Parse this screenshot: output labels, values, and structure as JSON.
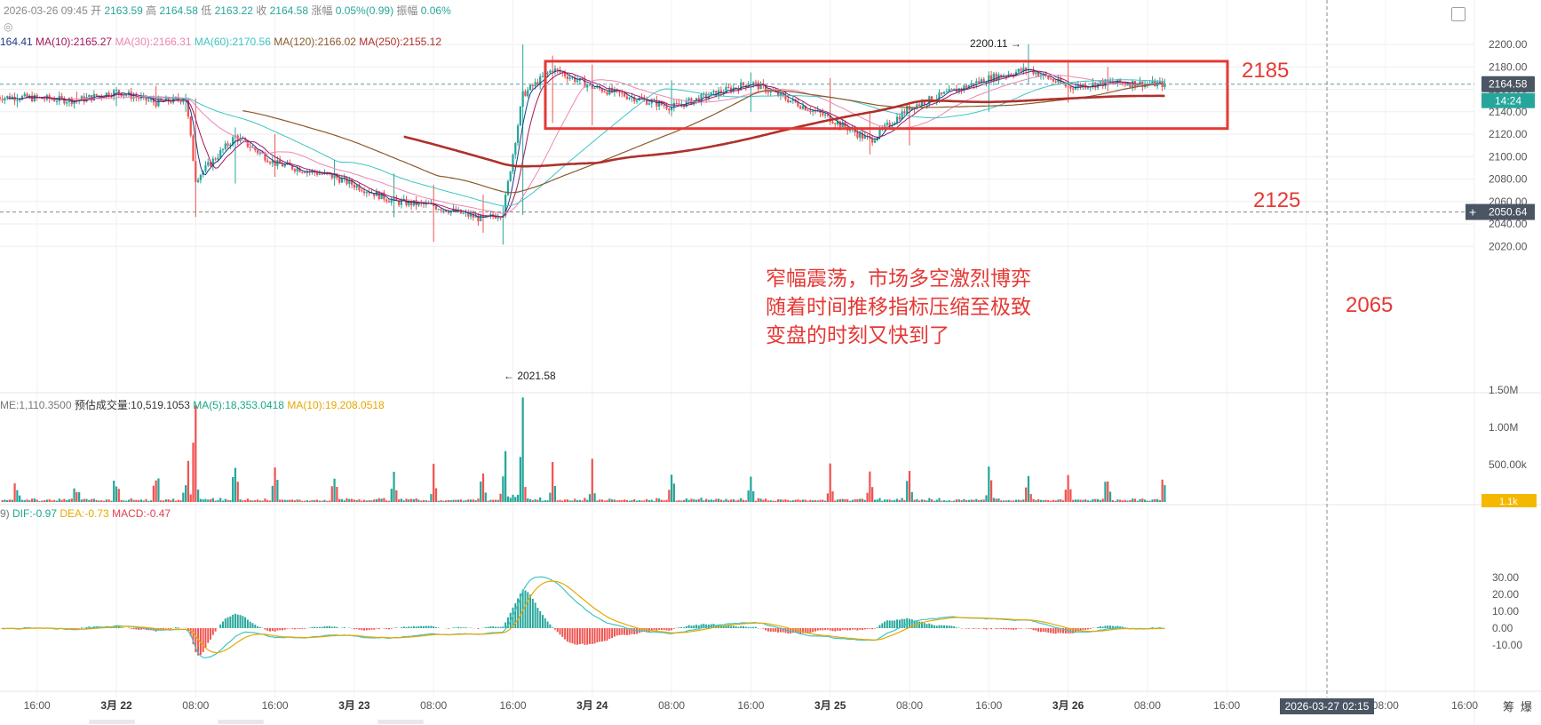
{
  "header": {
    "date": "2026-03-26 09:45",
    "open_label": "开",
    "open": "2163.59",
    "high_label": "高",
    "high": "2164.58",
    "low_label": "低",
    "low": "2163.22",
    "close_label": "收",
    "close": "2164.58",
    "chg_label": "涨幅",
    "chg": "0.05%(0.99)",
    "amp_label": "振幅",
    "amp": "0.06%"
  },
  "ma_legend": [
    {
      "text": "164.41",
      "color": "#1f3a8a"
    },
    {
      "text": "MA(10):2165.27",
      "color": "#a2165a"
    },
    {
      "text": "MA(30):2166.31",
      "color": "#ee86b4"
    },
    {
      "text": "MA(60):2170.56",
      "color": "#3fc4c4"
    },
    {
      "text": "MA(120):2166.02",
      "color": "#8a5a2a"
    },
    {
      "text": "MA(250):2155.12",
      "color": "#b0302a"
    }
  ],
  "volume_legend": [
    {
      "text": "ME:1,110.3500",
      "color": "#777777"
    },
    {
      "text": "预估成交量:10,519.1053",
      "color": "#333333"
    },
    {
      "text": "MA(5):18,353.0418",
      "color": "#1aa88a"
    },
    {
      "text": "MA(10):19,208.0518",
      "color": "#e6a800"
    }
  ],
  "macd_legend": [
    {
      "text": "9)",
      "color": "#777777"
    },
    {
      "text": "DIF:-0.97",
      "color": "#1aa88a"
    },
    {
      "text": "DEA:-0.73",
      "color": "#e6a800"
    },
    {
      "text": "MACD:-0.47",
      "color": "#e04050"
    }
  ],
  "price_axis": {
    "ticks": [
      "2200.00",
      "2180.00",
      "2160.00",
      "2140.00",
      "2120.00",
      "2100.00",
      "2080.00",
      "2060.00",
      "2040.00",
      "2020.00"
    ],
    "current_price": "2164.58",
    "countdown": "14:24",
    "crosshair_price": "2050.64"
  },
  "volume_axis": {
    "ticks": [
      "1.50M",
      "1.00M",
      "500.00k"
    ],
    "current": "1.1k"
  },
  "macd_axis": {
    "ticks": [
      "30.00",
      "20.00",
      "10.00",
      "0.00",
      "-10.00"
    ]
  },
  "time_axis": {
    "labels": [
      "16:00",
      "3月 22",
      "08:00",
      "16:00",
      "3月 23",
      "08:00",
      "16:00",
      "3月 24",
      "08:00",
      "16:00",
      "3月 25",
      "08:00",
      "16:00",
      "3月 26",
      "08:00",
      "16:00",
      "08:00",
      "16:00"
    ],
    "crosshair_time": "2026-03-27 02:15"
  },
  "annotations": {
    "high_marker": "2200.11",
    "low_marker": "2021.58",
    "level_upper": "2185",
    "level_lower": "2125",
    "level_support": "2065",
    "comment_line1": "窄幅震荡，市场多空激烈博弈",
    "comment_line2": "随着时间推移指标压缩至极致",
    "comment_line3": "变盘的时刻又快到了"
  },
  "corner_labels": {
    "right1": "筹",
    "right2": "爆"
  },
  "colors": {
    "up": "#26a69a",
    "down": "#ef5350",
    "box": "#e53935",
    "annotation": "#e53935",
    "axis_text": "#555555",
    "grid": "#eeeeee",
    "price_tag_bg": "#4b5563",
    "countdown_bg": "#26a69a",
    "vol_tag_bg": "#f5b800"
  },
  "chart_data": {
    "type": "candlestick",
    "timeframe": "15m",
    "ylim": [
      2010,
      2210
    ],
    "ohlc_summary": [
      {
        "t": "3月21 14:00",
        "o": 2148,
        "h": 2156,
        "l": 2144,
        "c": 2153
      },
      {
        "t": "3月21 20:00",
        "o": 2153,
        "h": 2158,
        "l": 2147,
        "c": 2150
      },
      {
        "t": "3月22 00:00",
        "o": 2150,
        "h": 2162,
        "l": 2145,
        "c": 2158
      },
      {
        "t": "3月22 04:00",
        "o": 2158,
        "h": 2163,
        "l": 2147,
        "c": 2148
      },
      {
        "t": "3月22 07:00",
        "o": 2148,
        "h": 2156,
        "l": 2140,
        "c": 2152
      },
      {
        "t": "3月22 08:00",
        "o": 2150,
        "h": 2152,
        "l": 2046,
        "c": 2080
      },
      {
        "t": "3月22 12:00",
        "o": 2080,
        "h": 2126,
        "l": 2076,
        "c": 2118
      },
      {
        "t": "3月22 16:00",
        "o": 2116,
        "h": 2120,
        "l": 2082,
        "c": 2094
      },
      {
        "t": "3月22 22:00",
        "o": 2094,
        "h": 2097,
        "l": 2074,
        "c": 2082
      },
      {
        "t": "3月23 04:00",
        "o": 2082,
        "h": 2085,
        "l": 2046,
        "c": 2060
      },
      {
        "t": "3月23 08:00",
        "o": 2060,
        "h": 2075,
        "l": 2024,
        "c": 2056
      },
      {
        "t": "3月23 13:00",
        "o": 2056,
        "h": 2066,
        "l": 2032,
        "c": 2044
      },
      {
        "t": "3月23 15:00",
        "o": 2044,
        "h": 2056,
        "l": 2021.58,
        "c": 2050
      },
      {
        "t": "3月23 17:00",
        "o": 2050,
        "h": 2200,
        "l": 2048,
        "c": 2155
      },
      {
        "t": "3月23 20:00",
        "o": 2155,
        "h": 2190,
        "l": 2130,
        "c": 2178
      },
      {
        "t": "3月24 00:00",
        "o": 2178,
        "h": 2182,
        "l": 2128,
        "c": 2162
      },
      {
        "t": "3月24 08:00",
        "o": 2162,
        "h": 2168,
        "l": 2136,
        "c": 2144
      },
      {
        "t": "3月24 16:00",
        "o": 2144,
        "h": 2175,
        "l": 2140,
        "c": 2166
      },
      {
        "t": "3月25 00:00",
        "o": 2166,
        "h": 2170,
        "l": 2128,
        "c": 2134
      },
      {
        "t": "3月25 04:00",
        "o": 2134,
        "h": 2140,
        "l": 2102,
        "c": 2114
      },
      {
        "t": "3月25 08:00",
        "o": 2114,
        "h": 2148,
        "l": 2110,
        "c": 2144
      },
      {
        "t": "3月25 16:00",
        "o": 2144,
        "h": 2176,
        "l": 2140,
        "c": 2170
      },
      {
        "t": "3月25 20:00",
        "o": 2170,
        "h": 2200.11,
        "l": 2165,
        "c": 2178
      },
      {
        "t": "3月26 00:00",
        "o": 2178,
        "h": 2185,
        "l": 2148,
        "c": 2162
      },
      {
        "t": "3月26 04:00",
        "o": 2162,
        "h": 2180,
        "l": 2158,
        "c": 2166
      },
      {
        "t": "3月26 09:45",
        "o": 2163.59,
        "h": 2164.58,
        "l": 2163.22,
        "c": 2164.58
      }
    ],
    "moving_averages": [
      {
        "name": "MA(10)",
        "value": 2165.27
      },
      {
        "name": "MA(30)",
        "value": 2166.31
      },
      {
        "name": "MA(60)",
        "value": 2170.56
      },
      {
        "name": "MA(120)",
        "value": 2166.02
      },
      {
        "name": "MA(250)",
        "value": 2155.12
      }
    ],
    "range_box": {
      "upper": 2185,
      "lower": 2125
    },
    "volume_ylim": [
      0,
      1600000
    ],
    "macd_ylim": [
      -16,
      34
    ],
    "macd_last": {
      "DIF": -0.97,
      "DEA": -0.73,
      "MACD": -0.47
    }
  }
}
